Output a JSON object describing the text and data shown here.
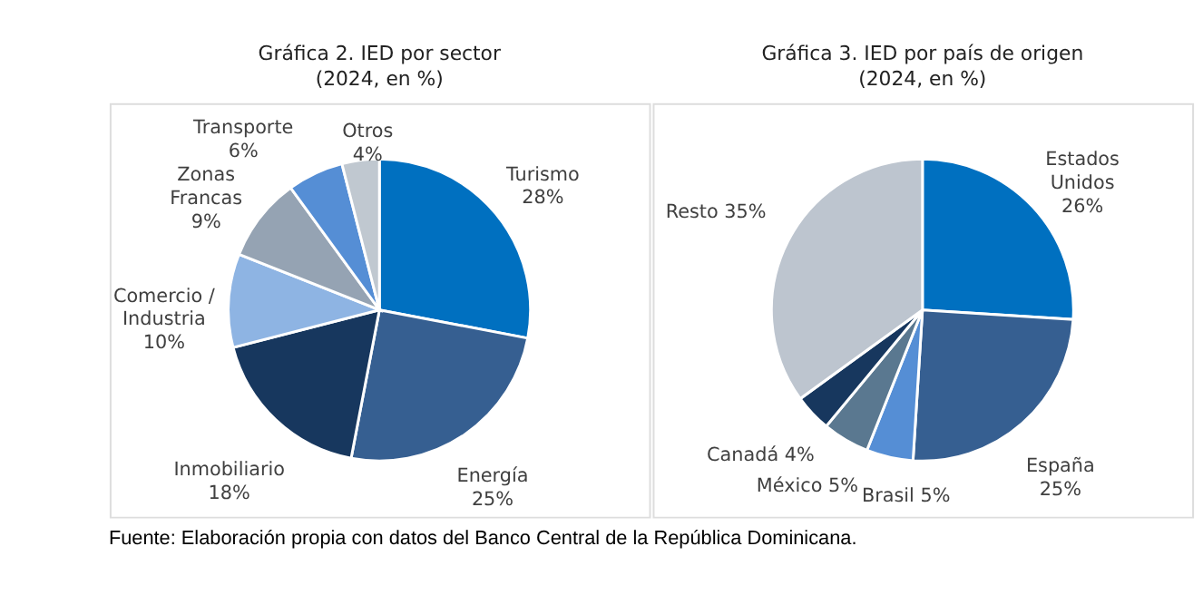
{
  "chart_data": [
    {
      "type": "pie",
      "title": "Gráfica 2. IED por sector",
      "subtitle": "(2024, en %)",
      "categories": [
        "Turismo",
        "Energía",
        "Inmobiliario",
        "Comercio / Industria",
        "Zonas Francas",
        "Transporte",
        "Otros"
      ],
      "values": [
        28,
        25,
        18,
        10,
        9,
        6,
        4
      ],
      "value_labels": [
        "28%",
        "25%",
        "18%",
        "10%",
        "9%",
        "6%",
        "4%"
      ],
      "colors": [
        "#0070c0",
        "#365f91",
        "#17375e",
        "#8eb4e3",
        "#95a3b3",
        "#558ed5",
        "#c0c8d0"
      ],
      "legend": false,
      "annotations": [
        "Fuente: Elaboración propia con datos del Banco Central de la República Dominicana."
      ]
    },
    {
      "type": "pie",
      "title": "Gráfica 3. IED por país de origen",
      "subtitle": "(2024, en %)",
      "categories": [
        "Estados Unidos",
        "España",
        "Brasil",
        "México",
        "Canadá",
        "Resto"
      ],
      "values": [
        26,
        25,
        5,
        5,
        4,
        35
      ],
      "value_labels": [
        "26%",
        "25%",
        "5%",
        "5%",
        "4%",
        "35%"
      ],
      "colors": [
        "#0070c0",
        "#365f91",
        "#558ed5",
        "#5a7890",
        "#17375e",
        "#bdc5cf"
      ],
      "legend": false
    }
  ]
}
